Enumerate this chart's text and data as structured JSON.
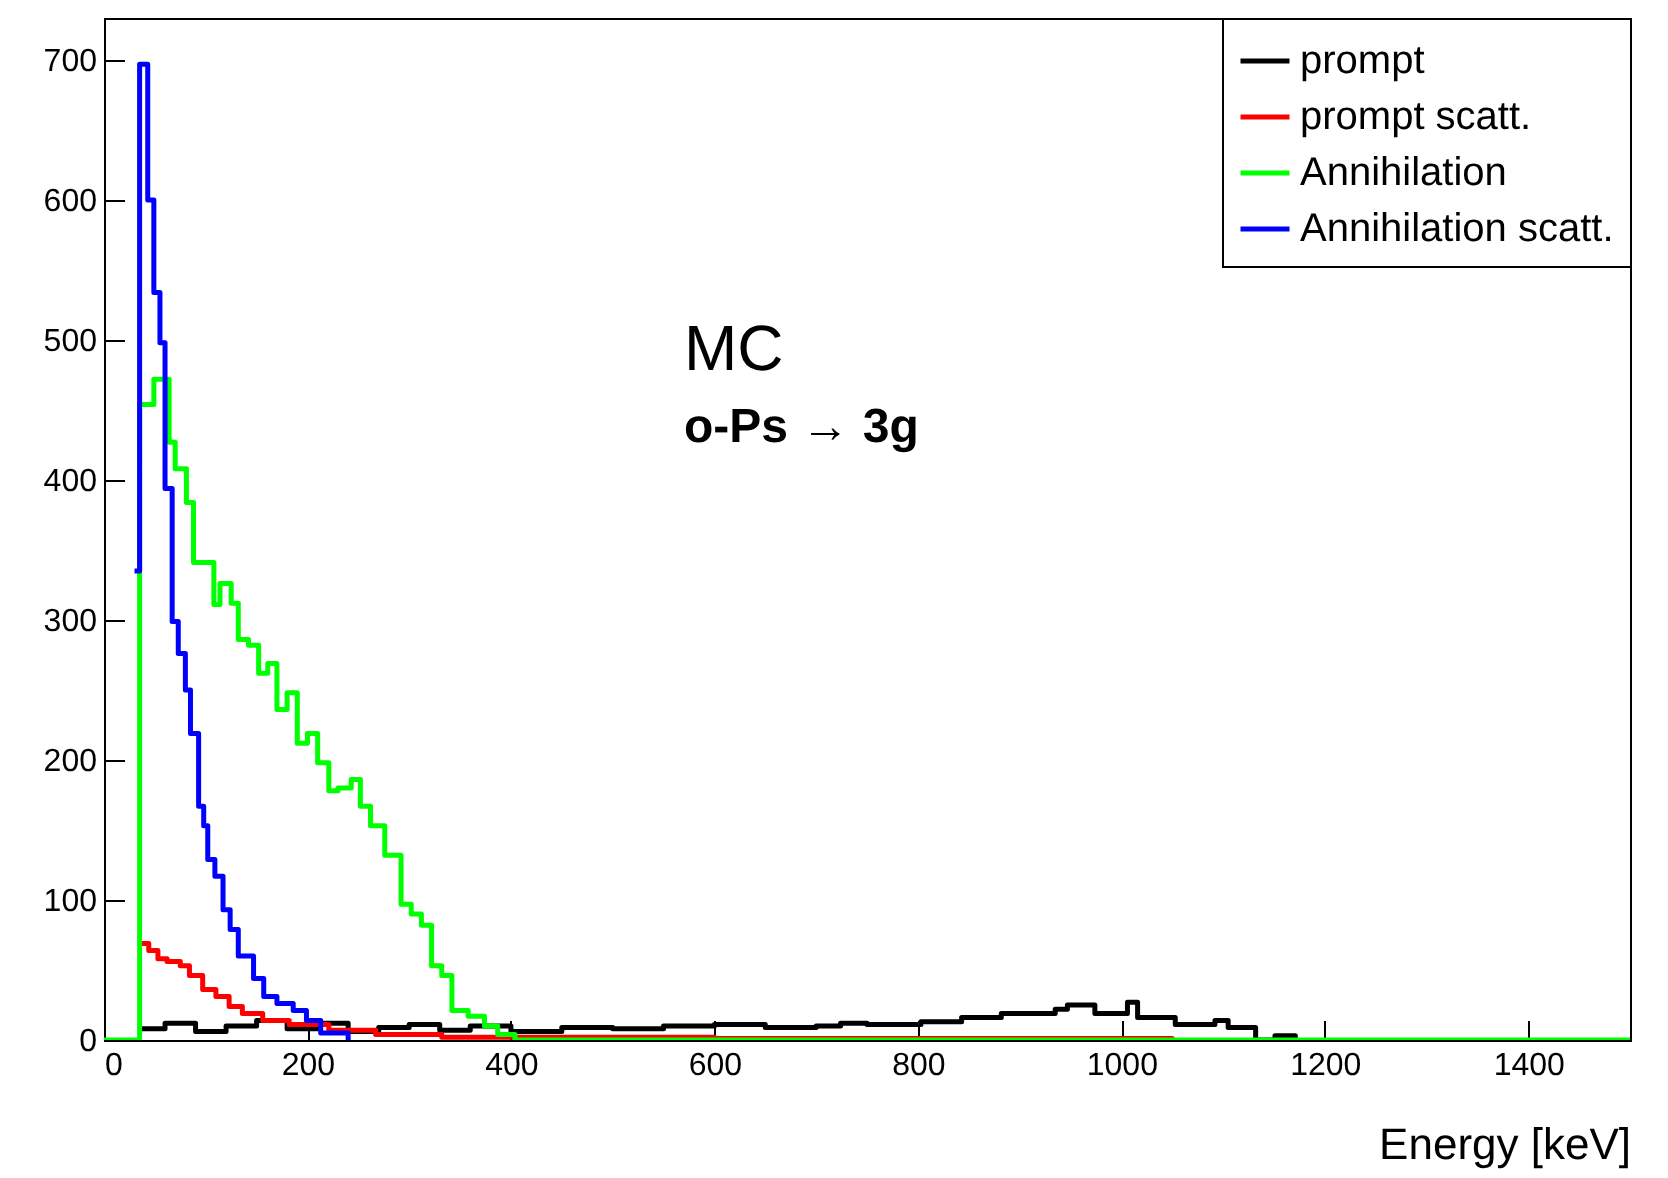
{
  "chart_data": {
    "type": "step",
    "xlabel": "Energy [keV]",
    "xlim": [
      0,
      1500
    ],
    "ylim": [
      0,
      730
    ],
    "xticks": [
      0,
      200,
      400,
      600,
      800,
      1000,
      1200,
      1400
    ],
    "yticks": [
      0,
      100,
      200,
      300,
      400,
      500,
      600,
      700
    ],
    "grid": false,
    "legend": "top right",
    "line_style": "solid",
    "marker": "none",
    "annotations": [
      "MC",
      "o-Ps → 3g"
    ],
    "series": [
      {
        "name": "prompt",
        "color": "#000000",
        "x": [
          35,
          60,
          90,
          120,
          150,
          180,
          210,
          240,
          270,
          300,
          330,
          360,
          400,
          450,
          500,
          550,
          600,
          650,
          700,
          724,
          750,
          803,
          843,
          882,
          935,
          947,
          974,
          1006,
          1016,
          1053,
          1092,
          1105,
          1132,
          1151,
          1171
        ],
        "values": [
          8,
          12,
          6,
          10,
          14,
          8,
          12,
          6,
          9,
          11,
          7,
          10,
          6,
          9,
          8,
          10,
          11,
          9,
          10,
          12,
          11,
          13,
          16,
          19,
          22,
          25,
          19,
          27,
          16,
          11,
          14,
          9,
          0,
          3,
          0
        ]
      },
      {
        "name": "prompt scatt.",
        "color": "#ff0000",
        "x": [
          35,
          44,
          53,
          62,
          75,
          84,
          97,
          110,
          123,
          136,
          156,
          182,
          221,
          267,
          332,
          600,
          1050
        ],
        "values": [
          69,
          64,
          58,
          56,
          53,
          46,
          36,
          31,
          24,
          19,
          14,
          11,
          7,
          4,
          2,
          1,
          0
        ]
      },
      {
        "name": "Annihilation",
        "color": "#00ff00",
        "x": [
          0,
          35,
          49,
          64,
          70,
          81,
          88,
          108,
          114,
          125,
          132,
          142,
          152,
          161,
          170,
          180,
          190,
          200,
          210,
          221,
          230,
          243,
          252,
          262,
          276,
          292,
          302,
          312,
          322,
          332,
          342,
          358,
          374,
          387,
          404,
          1500
        ],
        "values": [
          0,
          454,
          472,
          427,
          408,
          384,
          341,
          311,
          326,
          312,
          286,
          282,
          262,
          269,
          236,
          248,
          212,
          219,
          198,
          178,
          180,
          186,
          167,
          153,
          132,
          97,
          90,
          82,
          53,
          46,
          21,
          17,
          10,
          4,
          0,
          0
        ]
      },
      {
        "name": "Annihilation scatt.",
        "color": "#0000ff",
        "x": [
          30,
          35,
          43,
          49,
          55,
          60,
          67,
          73,
          80,
          85,
          93,
          98,
          102,
          109,
          117,
          124,
          132,
          147,
          157,
          170,
          186,
          199,
          213,
          240
        ],
        "values": [
          335,
          697,
          600,
          534,
          498,
          394,
          299,
          276,
          250,
          219,
          167,
          153,
          129,
          117,
          93,
          79,
          60,
          44,
          31,
          26,
          21,
          14,
          5,
          0
        ]
      }
    ]
  }
}
